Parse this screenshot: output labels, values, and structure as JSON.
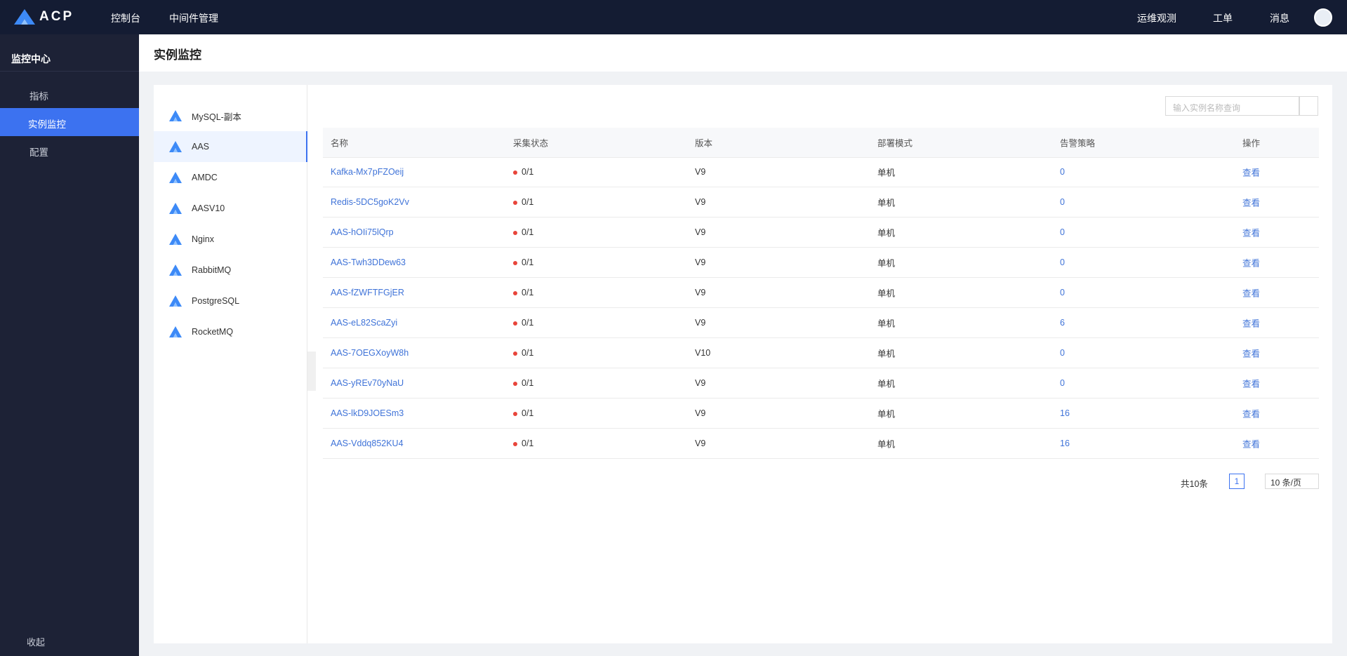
{
  "topbar": {
    "logo": "ACP",
    "nav": [
      "控制台",
      "中间件管理"
    ],
    "actions": [
      "运维观测",
      "工单",
      "消息"
    ]
  },
  "sidebar": {
    "title": "监控中心",
    "menu": [
      {
        "label": "指标",
        "children": [
          "实例监控"
        ]
      },
      {
        "label": "配置"
      }
    ],
    "collapse": "收起"
  },
  "page_title": "实例监控",
  "types": [
    "MySQL-副本",
    "AAS",
    "AMDC",
    "AASV10",
    "Nginx",
    "RabbitMQ",
    "PostgreSQL",
    "RocketMQ"
  ],
  "search": {
    "placeholder": "输入实例名称查询"
  },
  "table": {
    "columns": [
      "名称",
      "采集状态",
      "版本",
      "部署模式",
      "告警策略",
      "操作"
    ],
    "rows": [
      [
        "Kafka-Mx7pFZOeij",
        "0/1",
        "V9",
        "单机",
        0,
        "查看"
      ],
      [
        "Redis-5DC5goK2Vv",
        "0/1",
        "V9",
        "单机",
        0,
        "查看"
      ],
      [
        "AAS-hOIi75lQrp",
        "0/1",
        "V9",
        "单机",
        0,
        "查看"
      ],
      [
        "AAS-Twh3DDew63",
        "0/1",
        "V9",
        "单机",
        0,
        "查看"
      ],
      [
        "AAS-fZWFTFGjER",
        "0/1",
        "V9",
        "单机",
        0,
        "查看"
      ],
      [
        "AAS-eL82ScaZyi",
        "0/1",
        "V9",
        "单机",
        6,
        "查看"
      ],
      [
        "AAS-7OEGXoyW8h",
        "0/1",
        "V10",
        "单机",
        0,
        "查看"
      ],
      [
        "AAS-yREv70yNaU",
        "0/1",
        "V9",
        "单机",
        0,
        "查看"
      ],
      [
        "AAS-lkD9JOESm3",
        "0/1",
        "V9",
        "单机",
        16,
        "查看"
      ],
      [
        "AAS-Vddq852KU4",
        "0/1",
        "V9",
        "单机",
        16,
        "查看"
      ]
    ]
  },
  "pagination": {
    "total": "共10条",
    "page": "1",
    "page_size": "10 条/页"
  }
}
